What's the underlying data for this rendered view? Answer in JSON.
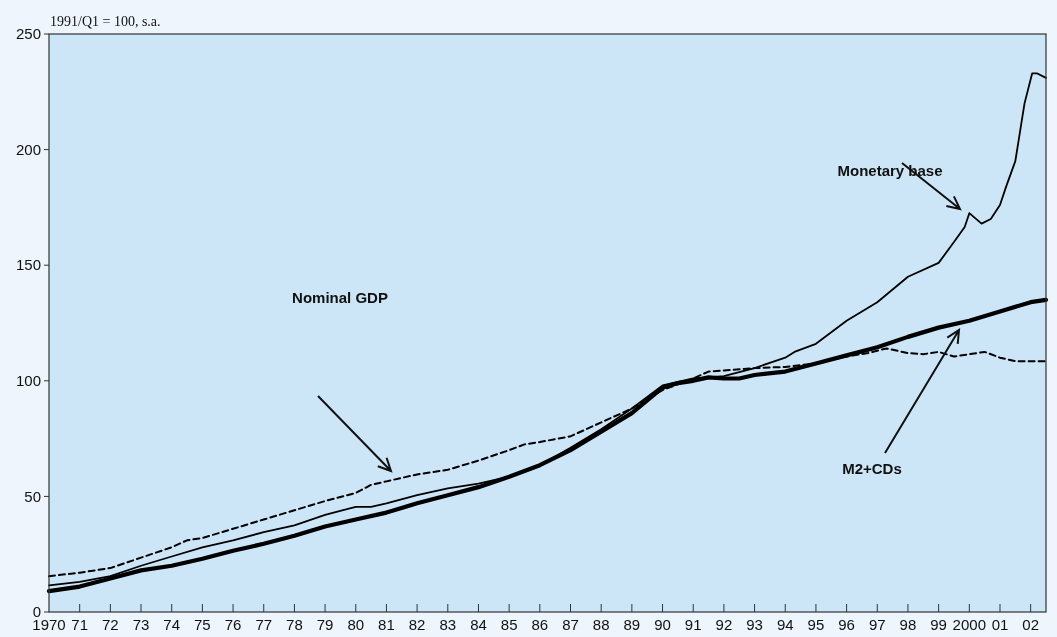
{
  "chart_data": {
    "type": "line",
    "ylabel": "1991/Q1 = 100, s.a.",
    "xlim": [
      1970,
      2002.5
    ],
    "ylim": [
      0,
      250
    ],
    "yticks": [
      0,
      50,
      100,
      150,
      200,
      250
    ],
    "xticks": [
      1970,
      {
        "value": 1971,
        "label": "71"
      },
      {
        "value": 1972,
        "label": "72"
      },
      {
        "value": 1973,
        "label": "73"
      },
      {
        "value": 1974,
        "label": "74"
      },
      {
        "value": 1975,
        "label": "75"
      },
      {
        "value": 1976,
        "label": "76"
      },
      {
        "value": 1977,
        "label": "77"
      },
      {
        "value": 1978,
        "label": "78"
      },
      {
        "value": 1979,
        "label": "79"
      },
      {
        "value": 1980,
        "label": "80"
      },
      {
        "value": 1981,
        "label": "81"
      },
      {
        "value": 1982,
        "label": "82"
      },
      {
        "value": 1983,
        "label": "83"
      },
      {
        "value": 1984,
        "label": "84"
      },
      {
        "value": 1985,
        "label": "85"
      },
      {
        "value": 1986,
        "label": "86"
      },
      {
        "value": 1987,
        "label": "87"
      },
      {
        "value": 1988,
        "label": "88"
      },
      {
        "value": 1989,
        "label": "89"
      },
      {
        "value": 1990,
        "label": "90"
      },
      {
        "value": 1991,
        "label": "91"
      },
      {
        "value": 1992,
        "label": "92"
      },
      {
        "value": 1993,
        "label": "93"
      },
      {
        "value": 1994,
        "label": "94"
      },
      {
        "value": 1995,
        "label": "95"
      },
      {
        "value": 1996,
        "label": "96"
      },
      {
        "value": 1997,
        "label": "97"
      },
      {
        "value": 1998,
        "label": "98"
      },
      {
        "value": 1999,
        "label": "99"
      },
      2000,
      {
        "value": 2001,
        "label": "01"
      },
      {
        "value": 2002,
        "label": "02"
      }
    ],
    "grid": false,
    "legend": false,
    "marker": "none",
    "series": [
      {
        "color": "#000000",
        "line_style": "solid",
        "x": [
          1970,
          1971,
          1972,
          1973,
          1974,
          1975,
          1976,
          1977,
          1978,
          1979,
          1980,
          1980.5,
          1981,
          1982,
          1983,
          1984,
          1985,
          1986,
          1987,
          1988,
          1989,
          1990,
          1991,
          1992,
          1993,
          1994,
          1994.3,
          1995,
          1996,
          1997,
          1998,
          1999,
          1999.5,
          1999.85,
          2000,
          2000.4,
          2000.7,
          2001,
          2001.2,
          2001.5,
          2001.8,
          2002.05,
          2002.2,
          2002.5
        ],
        "values": [
          11.5,
          13,
          15.5,
          20,
          24,
          28,
          31,
          34.5,
          37.5,
          42,
          45.5,
          45.5,
          47,
          50.5,
          53.5,
          55.5,
          58.5,
          63.5,
          71,
          79,
          88,
          98,
          101,
          102,
          105.5,
          110,
          112.5,
          116,
          126,
          134,
          145,
          151,
          160,
          166.5,
          172.5,
          168,
          170,
          176,
          184,
          195,
          220,
          233,
          233,
          231
        ]
      },
      {
        "color": "#000000",
        "line_style": "solid",
        "x": [
          1970,
          1971,
          1972,
          1973,
          1974,
          1975,
          1976,
          1977,
          1978,
          1979,
          1980,
          1981,
          1982,
          1983,
          1984,
          1985,
          1986,
          1987,
          1988,
          1989,
          1990,
          1990.5,
          1991,
          1991.5,
          1992,
          1992.5,
          1993,
          1994,
          1995,
          1996,
          1997,
          1998,
          1999,
          2000,
          2001,
          2002,
          2002.5
        ],
        "values": [
          9,
          11,
          14.5,
          18,
          20,
          23,
          26.5,
          29.5,
          33,
          37,
          40,
          43,
          47,
          50.5,
          54,
          58.5,
          63.5,
          70,
          78,
          86,
          97,
          99,
          100,
          101.5,
          101,
          101,
          102.5,
          104,
          107.5,
          111,
          114.5,
          119,
          123,
          126,
          130,
          134,
          135
        ]
      },
      {
        "color": "#000000",
        "line_style": "dashed",
        "x": [
          1970,
          1971,
          1972,
          1973,
          1974,
          1974.5,
          1975,
          1976,
          1977,
          1978,
          1979,
          1980,
          1980.5,
          1981,
          1982,
          1983,
          1984,
          1985,
          1985.5,
          1986,
          1987,
          1988,
          1989,
          1990,
          1991,
          1991.5,
          1992,
          1993,
          1994,
          1995,
          1996,
          1996.7,
          1997.3,
          1998,
          1998.5,
          1999,
          1999.5,
          2000.5,
          2001,
          2001.5,
          2002.5
        ],
        "values": [
          15.5,
          17,
          19,
          23.5,
          28,
          31,
          32,
          36,
          40,
          44,
          48,
          51.5,
          55,
          56.5,
          59.5,
          61.5,
          65.5,
          70,
          72.5,
          73.5,
          76,
          82,
          88,
          96,
          101,
          104,
          104.5,
          105.5,
          106,
          107.5,
          110.5,
          112,
          114,
          112,
          111.5,
          112.5,
          110.5,
          112.5,
          110,
          108.5,
          108.5
        ]
      }
    ],
    "annotations": [
      "Monetary base",
      "Nominal GDP",
      "M2+CDs"
    ]
  }
}
